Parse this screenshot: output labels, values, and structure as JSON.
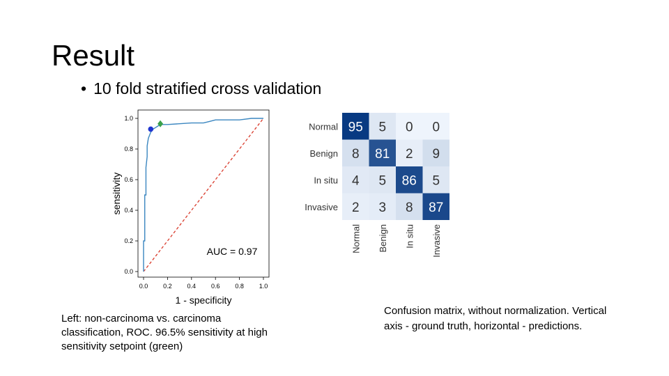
{
  "slide": {
    "title": "Result",
    "bullet": "10 fold stratified cross validation",
    "caption_left": "Left: non-carcinoma vs. carcinoma classification, ROC. 96.5% sensitivity at high sensitivity setpoint (green)",
    "caption_right": "Confusion matrix, without normalization. Vertical axis - ground truth, horizontal - predictions."
  },
  "chart_data": [
    {
      "type": "line",
      "xlabel": "1 - specificity",
      "ylabel": "sensitivity",
      "xlim": [
        0,
        1
      ],
      "ylim": [
        0,
        1
      ],
      "xticks": [
        "0.0",
        "0.2",
        "0.4",
        "0.6",
        "0.8",
        "1.0"
      ],
      "yticks": [
        "0.0",
        "0.2",
        "0.4",
        "0.6",
        "0.8",
        "1.0"
      ],
      "annotation": "AUC = 0.97",
      "series": [
        {
          "color": "#3a86c0",
          "x": [
            0.0,
            0.0,
            0.01,
            0.01,
            0.02,
            0.02,
            0.03,
            0.03,
            0.04,
            0.05,
            0.06,
            0.08,
            0.1,
            0.12,
            0.14,
            0.2,
            0.3,
            0.4,
            0.5,
            0.55,
            0.6,
            0.7,
            0.8,
            0.9,
            1.0
          ],
          "y": [
            0.0,
            0.2,
            0.2,
            0.5,
            0.5,
            0.68,
            0.75,
            0.82,
            0.87,
            0.89,
            0.91,
            0.93,
            0.94,
            0.95,
            0.96,
            0.96,
            0.965,
            0.97,
            0.97,
            0.98,
            0.99,
            0.99,
            0.99,
            1.0,
            1.0
          ]
        }
      ],
      "diagonal": {
        "x": [
          0,
          1
        ],
        "y": [
          0,
          1
        ],
        "color": "#d93a2b",
        "style": "dashed"
      },
      "points": [
        {
          "x": 0.06,
          "y": 0.93,
          "color": "#1f35d0",
          "marker": "circle"
        },
        {
          "x": 0.14,
          "y": 0.965,
          "color": "#3aa04a",
          "marker": "diamond"
        }
      ],
      "grid": false
    },
    {
      "type": "heatmap",
      "rows": [
        "Normal",
        "Benign",
        "In situ",
        "Invasive"
      ],
      "columns": [
        "Normal",
        "Benign",
        "In situ",
        "Invasive"
      ],
      "values": [
        [
          95,
          5,
          0,
          0
        ],
        [
          8,
          81,
          2,
          9
        ],
        [
          4,
          5,
          86,
          5
        ],
        [
          2,
          3,
          8,
          87
        ]
      ],
      "colormap": "Blues"
    }
  ]
}
